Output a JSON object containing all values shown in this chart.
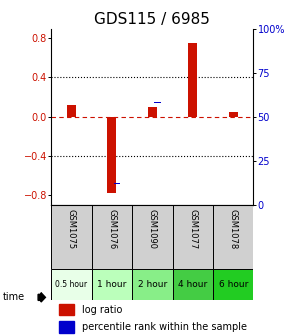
{
  "title": "GDS115 / 6985",
  "samples": [
    "GSM1075",
    "GSM1076",
    "GSM1090",
    "GSM1077",
    "GSM1078"
  ],
  "time_labels": [
    "0.5 hour",
    "1 hour",
    "2 hour",
    "4 hour",
    "6 hour"
  ],
  "time_colors": [
    "#e8ffe8",
    "#bbffbb",
    "#88ee88",
    "#44cc44",
    "#22cc22"
  ],
  "log_ratios": [
    0.12,
    -0.78,
    0.1,
    0.75,
    0.05
  ],
  "percentile_ranks": [
    47,
    12,
    58,
    90,
    56
  ],
  "bar_color_red": "#cc1100",
  "bar_color_blue": "#0000cc",
  "ylim_left": [
    -0.9,
    0.9
  ],
  "ylim_right": [
    0,
    100
  ],
  "yticks_left": [
    -0.8,
    -0.4,
    0.0,
    0.4,
    0.8
  ],
  "yticks_right": [
    0,
    25,
    50,
    75,
    100
  ],
  "bg_color": "#ffffff",
  "title_fontsize": 11,
  "bar_width": 0.4,
  "blue_square_size": 0.12
}
